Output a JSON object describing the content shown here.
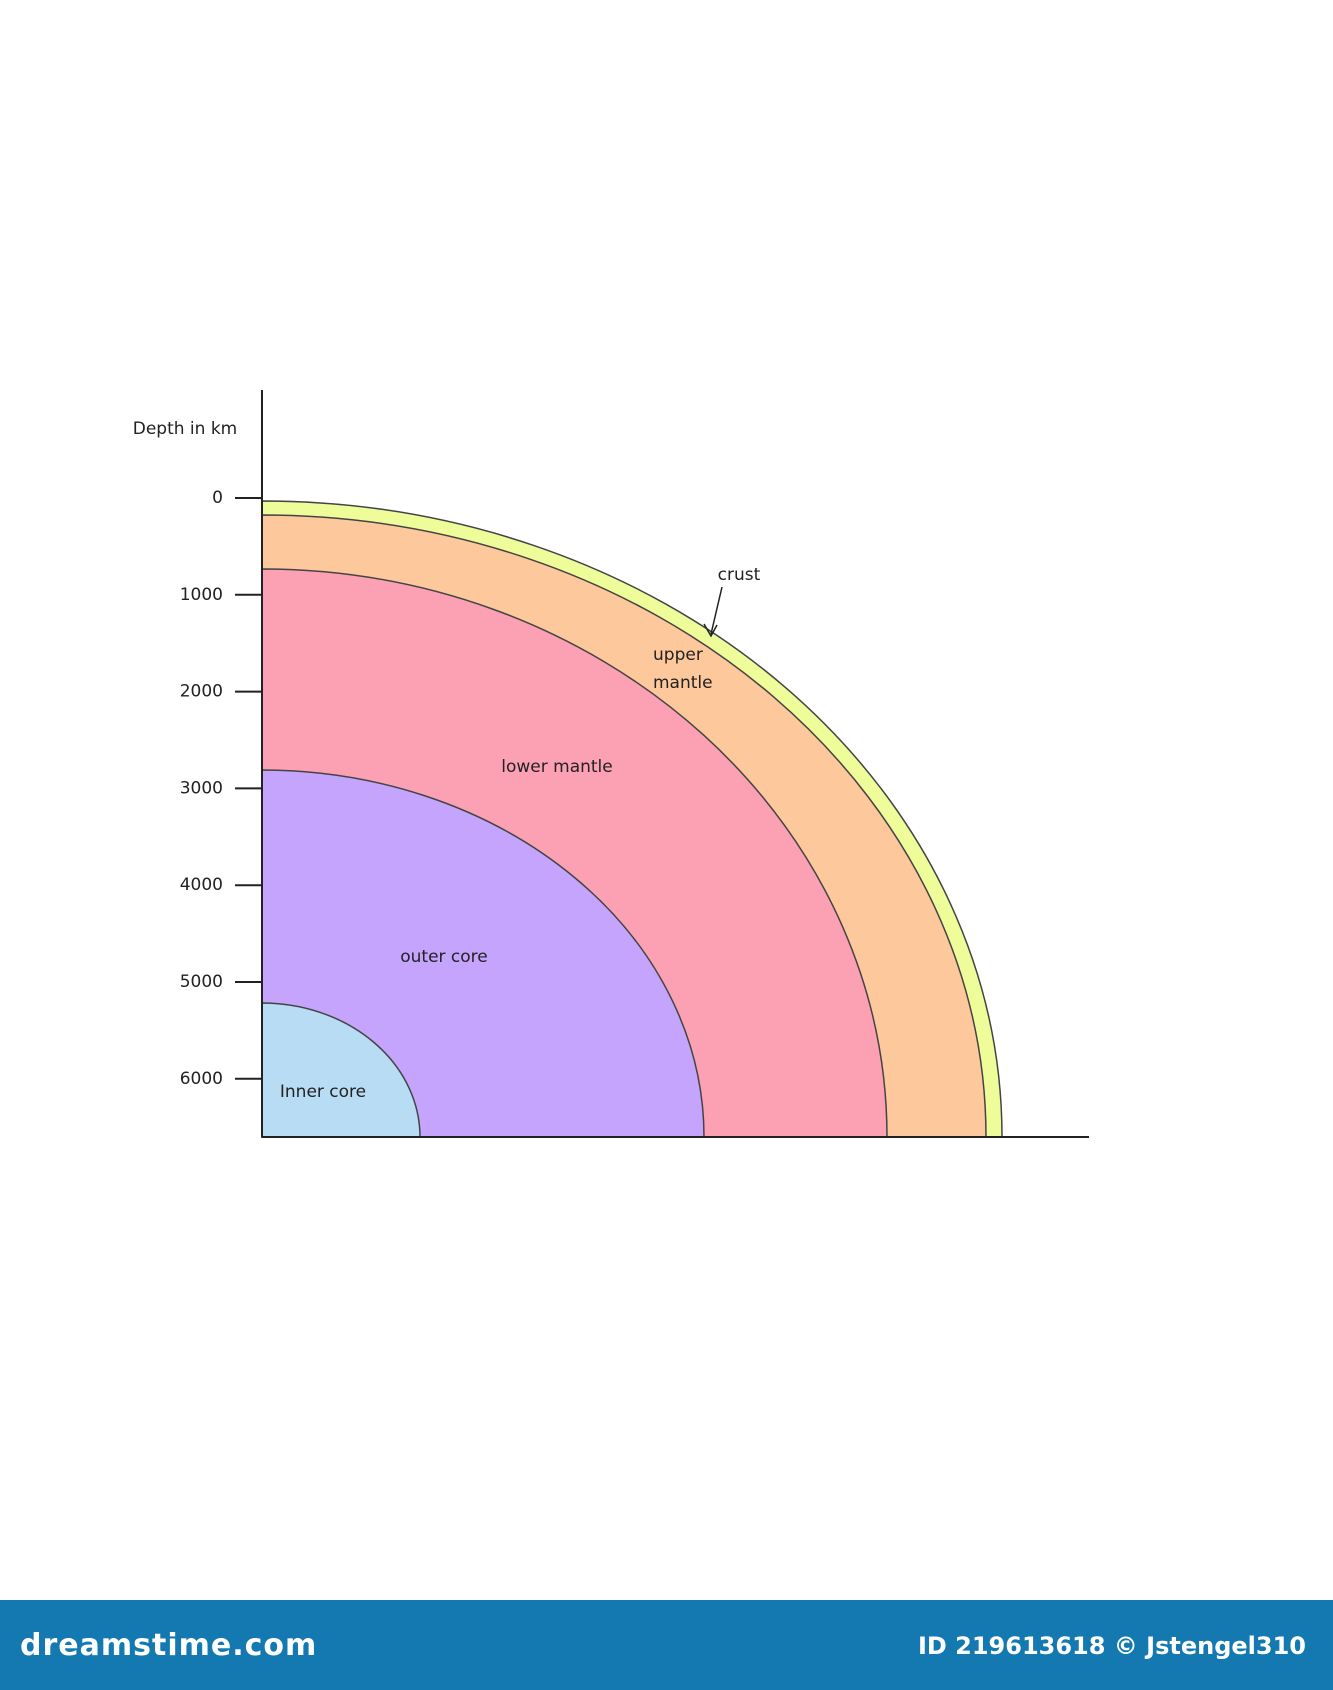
{
  "axis_label": "Depth in km",
  "ticks": [
    0,
    1000,
    2000,
    3000,
    4000,
    5000,
    6000
  ],
  "layers": {
    "crust": "crust",
    "upper_mantle": [
      "upper",
      "mantle"
    ],
    "lower_mantle": "lower mantle",
    "outer_core": "outer core",
    "inner_core": "Inner core"
  },
  "footer": {
    "brand": "dreamstime.com",
    "credit": "ID 219613618 © Jstengel310"
  }
}
